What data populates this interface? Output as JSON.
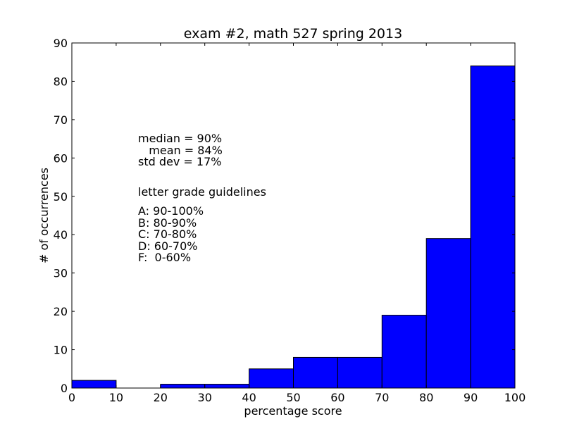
{
  "chart_data": {
    "type": "bar",
    "title": "exam #2, math 527 spring 2013",
    "xlabel": "percentage score",
    "ylabel": "# of occurrences",
    "xlim": [
      0,
      100
    ],
    "ylim": [
      0,
      90
    ],
    "xticks": [
      "0",
      "10",
      "20",
      "30",
      "40",
      "50",
      "60",
      "70",
      "80",
      "90",
      "100"
    ],
    "yticks": [
      "0",
      "10",
      "20",
      "30",
      "40",
      "50",
      "60",
      "70",
      "80",
      "90"
    ],
    "bins": [
      {
        "start": 0,
        "end": 10,
        "value": 2
      },
      {
        "start": 10,
        "end": 20,
        "value": 0
      },
      {
        "start": 20,
        "end": 30,
        "value": 1
      },
      {
        "start": 30,
        "end": 40,
        "value": 1
      },
      {
        "start": 40,
        "end": 50,
        "value": 5
      },
      {
        "start": 50,
        "end": 60,
        "value": 8
      },
      {
        "start": 60,
        "end": 70,
        "value": 8
      },
      {
        "start": 70,
        "end": 80,
        "value": 19
      },
      {
        "start": 80,
        "end": 90,
        "value": 39
      },
      {
        "start": 90,
        "end": 100,
        "value": 84
      }
    ],
    "bar_color": "#0000ff",
    "grid": false,
    "annotations": {
      "stats": [
        "median = 90%",
        "   mean = 84%",
        "std dev = 17%"
      ],
      "guidelines_title": "letter grade guidelines",
      "guidelines": [
        "A: 90-100%",
        "B: 80-90%",
        "C: 70-80%",
        "D: 60-70%",
        "F:  0-60%"
      ]
    }
  }
}
